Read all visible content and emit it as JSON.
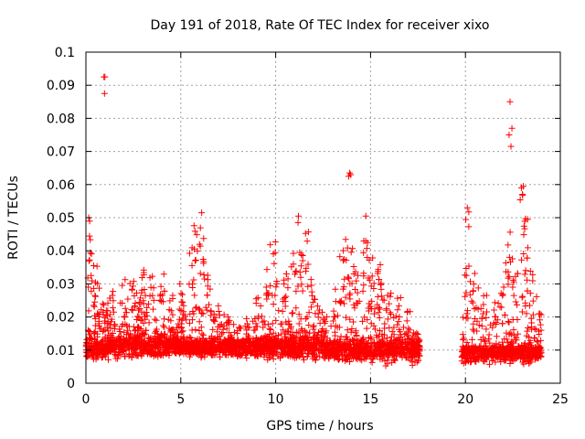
{
  "chart_data": {
    "type": "scatter",
    "title": "Day 191 of 2018, Rate Of TEC Index for receiver xixo",
    "xlabel": "GPS time / hours",
    "ylabel": "ROTI / TECUs",
    "xlim": [
      0,
      25
    ],
    "ylim": [
      0,
      0.1
    ],
    "x_ticks": [
      0,
      5,
      10,
      15,
      20,
      25
    ],
    "x_tick_labels": [
      "0",
      "5",
      "10",
      "15",
      "20",
      "25"
    ],
    "y_ticks": [
      0,
      0.01,
      0.02,
      0.03,
      0.04,
      0.05,
      0.06,
      0.07,
      0.08,
      0.09,
      0.1
    ],
    "y_tick_labels": [
      "0",
      "0.01",
      "0.02",
      "0.03",
      "0.04",
      "0.05",
      "0.06",
      "0.07",
      "0.08",
      "0.09",
      "0.1"
    ],
    "grid": true,
    "marker": "+",
    "series_color": "#ff0000",
    "data_segments": [
      {
        "start_hour": 0.0,
        "end_hour": 17.6
      },
      {
        "start_hour": 19.8,
        "end_hour": 24.0
      }
    ],
    "background_bands": [
      {
        "from": 0.0,
        "to": 1.0,
        "baseline": 0.01,
        "spread": 0.004
      },
      {
        "from": 1.0,
        "to": 4.5,
        "baseline": 0.011,
        "spread": 0.005
      },
      {
        "from": 4.5,
        "to": 9.0,
        "baseline": 0.011,
        "spread": 0.004
      },
      {
        "from": 9.0,
        "to": 12.5,
        "baseline": 0.011,
        "spread": 0.005
      },
      {
        "from": 12.5,
        "to": 17.6,
        "baseline": 0.01,
        "spread": 0.005
      },
      {
        "from": 19.8,
        "to": 24.0,
        "baseline": 0.009,
        "spread": 0.004
      }
    ],
    "upper_envelope": [
      [
        0.1,
        0.018
      ],
      [
        0.2,
        0.048
      ],
      [
        0.3,
        0.05
      ],
      [
        0.5,
        0.038
      ],
      [
        0.7,
        0.032
      ],
      [
        1.0,
        0.028
      ],
      [
        1.2,
        0.025
      ],
      [
        1.5,
        0.028
      ],
      [
        2.0,
        0.032
      ],
      [
        2.5,
        0.038
      ],
      [
        3.0,
        0.035
      ],
      [
        3.5,
        0.034
      ],
      [
        4.0,
        0.036
      ],
      [
        4.5,
        0.028
      ],
      [
        5.0,
        0.03
      ],
      [
        5.5,
        0.044
      ],
      [
        5.8,
        0.05
      ],
      [
        6.1,
        0.051
      ],
      [
        6.5,
        0.034
      ],
      [
        7.0,
        0.024
      ],
      [
        7.5,
        0.022
      ],
      [
        8.0,
        0.018
      ],
      [
        8.5,
        0.02
      ],
      [
        9.0,
        0.028
      ],
      [
        9.5,
        0.036
      ],
      [
        10.0,
        0.047
      ],
      [
        10.5,
        0.034
      ],
      [
        11.0,
        0.04
      ],
      [
        11.3,
        0.05
      ],
      [
        11.6,
        0.046
      ],
      [
        12.0,
        0.03
      ],
      [
        12.5,
        0.022
      ],
      [
        13.0,
        0.025
      ],
      [
        13.5,
        0.04
      ],
      [
        13.8,
        0.046
      ],
      [
        14.0,
        0.044
      ],
      [
        14.3,
        0.038
      ],
      [
        14.7,
        0.05
      ],
      [
        15.0,
        0.042
      ],
      [
        15.5,
        0.036
      ],
      [
        16.0,
        0.03
      ],
      [
        16.5,
        0.026
      ],
      [
        17.0,
        0.022
      ],
      [
        17.5,
        0.016
      ],
      [
        19.8,
        0.022
      ],
      [
        20.1,
        0.052
      ],
      [
        20.5,
        0.034
      ],
      [
        21.0,
        0.028
      ],
      [
        21.5,
        0.026
      ],
      [
        22.0,
        0.032
      ],
      [
        22.3,
        0.046
      ],
      [
        22.6,
        0.035
      ],
      [
        23.0,
        0.059
      ],
      [
        23.2,
        0.05
      ],
      [
        23.5,
        0.034
      ],
      [
        24.0,
        0.022
      ]
    ],
    "outliers": [
      {
        "x": 0.95,
        "y": 0.0925
      },
      {
        "x": 1.0,
        "y": 0.0925
      },
      {
        "x": 0.98,
        "y": 0.0875
      },
      {
        "x": 13.85,
        "y": 0.0625
      },
      {
        "x": 13.9,
        "y": 0.0635
      },
      {
        "x": 13.95,
        "y": 0.063
      },
      {
        "x": 22.35,
        "y": 0.085
      },
      {
        "x": 22.45,
        "y": 0.077
      },
      {
        "x": 22.3,
        "y": 0.075
      },
      {
        "x": 22.4,
        "y": 0.0715
      },
      {
        "x": 23.05,
        "y": 0.0595
      },
      {
        "x": 22.95,
        "y": 0.059
      },
      {
        "x": 14.75,
        "y": 0.0505
      },
      {
        "x": 11.2,
        "y": 0.0505
      },
      {
        "x": 20.1,
        "y": 0.053
      },
      {
        "x": 0.15,
        "y": 0.05
      },
      {
        "x": 6.1,
        "y": 0.0515
      }
    ],
    "point_density_per_hour": 150
  }
}
